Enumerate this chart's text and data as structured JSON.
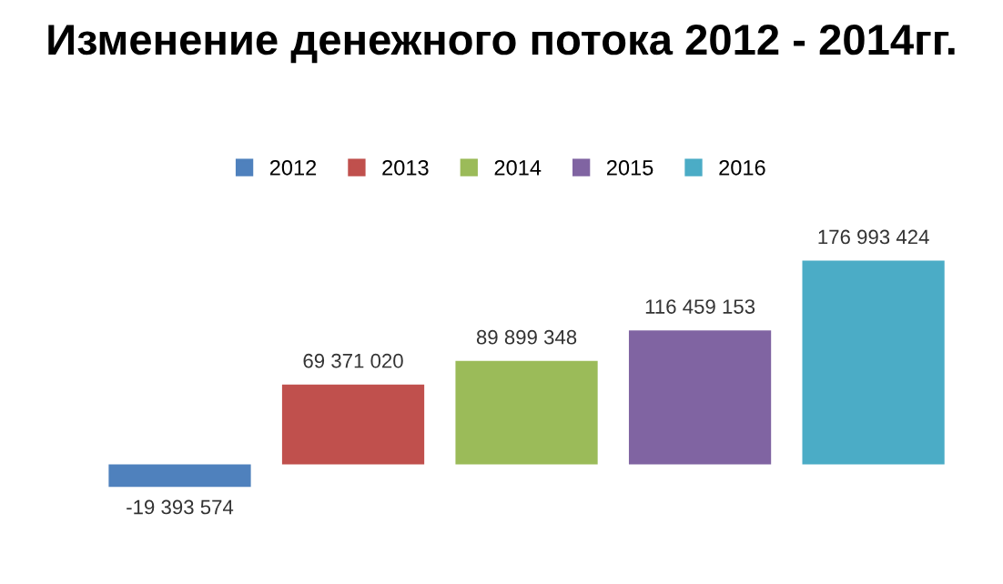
{
  "chart_data": {
    "type": "bar",
    "title": "Изменение денежного потока 2012 - 2014гг.",
    "categories": [
      null
    ],
    "series": [
      {
        "name": "2012",
        "color": "#4f81bd",
        "values": [
          -19393574
        ],
        "value_labels": [
          "-19 393 574"
        ]
      },
      {
        "name": "2013",
        "color": "#c0504d",
        "values": [
          69371020
        ],
        "value_labels": [
          "69 371 020"
        ]
      },
      {
        "name": "2014",
        "color": "#9bbb59",
        "values": [
          89899348
        ],
        "value_labels": [
          "89 899 348"
        ]
      },
      {
        "name": "2015",
        "color": "#8064a2",
        "values": [
          116459153
        ],
        "value_labels": [
          "116 459 153"
        ]
      },
      {
        "name": "2016",
        "color": "#4bacc6",
        "values": [
          176993424
        ],
        "value_labels": [
          "176 993 424"
        ]
      }
    ],
    "legend": "top",
    "grid": false
  }
}
